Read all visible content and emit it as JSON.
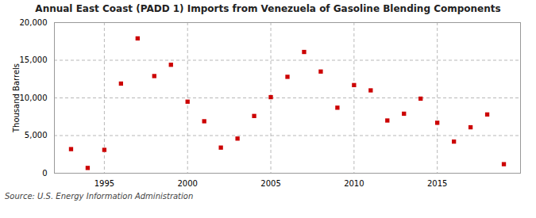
{
  "chart_data": {
    "type": "scatter",
    "title": "Annual East Coast (PADD 1) Imports from Venezuela of Gasoline Blending Components",
    "ylabel": "Thousand Barrels",
    "source": "Source: U.S. Energy Information Administration",
    "x": [
      1993,
      1994,
      1995,
      1996,
      1997,
      1998,
      1999,
      2000,
      2001,
      2002,
      2003,
      2004,
      2005,
      2006,
      2007,
      2008,
      2009,
      2010,
      2011,
      2012,
      2013,
      2014,
      2015,
      2016,
      2017,
      2018,
      2019
    ],
    "values": [
      3200,
      700,
      3100,
      11900,
      17900,
      12900,
      14400,
      9500,
      6900,
      3400,
      4600,
      7600,
      10100,
      12800,
      16100,
      13500,
      8700,
      11700,
      11000,
      7000,
      7900,
      9900,
      6700,
      4200,
      6100,
      7800,
      1200
    ],
    "color": "#cc0000",
    "marker": "square",
    "xlim": [
      1992,
      2020
    ],
    "xticks": [
      1995,
      2000,
      2005,
      2010,
      2015
    ],
    "ylim": [
      0,
      20000
    ],
    "yticks": [
      0,
      {
        "value": 5000,
        "label": "5,000"
      },
      {
        "value": 10000,
        "label": "10,000"
      },
      {
        "value": 15000,
        "label": "15,000"
      },
      {
        "value": 20000,
        "label": "20,000"
      }
    ],
    "grid": true
  }
}
